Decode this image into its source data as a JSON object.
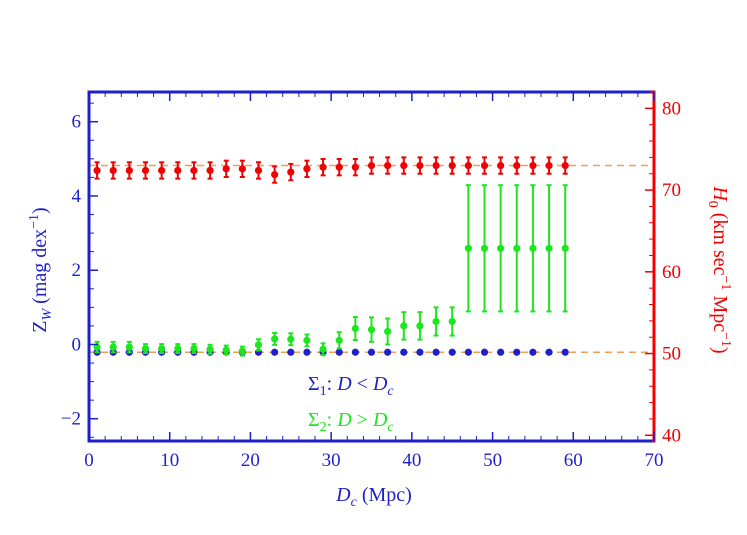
{
  "colors": {
    "zw": "#1f1fcc",
    "h0": "#f00000",
    "sigma2": "#1ee61e",
    "ref_line": "#f0a050",
    "frame": "#1f1fcc"
  },
  "chart_data": {
    "type": "scatter",
    "xlabel": "D",
    "xlabel_sub": "c",
    "xlabel_unit": " (Mpc)",
    "ylabel_left": "Z",
    "ylabel_left_sub": "W",
    "ylabel_left_unit": " (mag dex",
    "ylabel_left_sup": "−1",
    "ylabel_left_close": ")",
    "ylabel_right": "H",
    "ylabel_right_sub": "0",
    "ylabel_right_unit": " (km sec",
    "ylabel_right_sup1": "−1",
    "ylabel_right_mid": " Mpc",
    "ylabel_right_sup2": "−1",
    "ylabel_right_close": ")",
    "xlim": [
      0,
      70
    ],
    "ylim_left": [
      -2.6,
      6.8
    ],
    "ylim_right": [
      39.3,
      82
    ],
    "x_ticks": [
      0,
      10,
      20,
      30,
      40,
      50,
      60,
      70
    ],
    "x_tick_labels": [
      "0",
      "10",
      "20",
      "30",
      "40",
      "50",
      "60",
      "70"
    ],
    "y_left_ticks": [
      -2,
      0,
      2,
      4,
      6
    ],
    "y_left_tick_labels": [
      "−2",
      "0",
      "2",
      "4",
      "6"
    ],
    "y_right_ticks": [
      40,
      50,
      60,
      70,
      80
    ],
    "y_right_tick_labels": [
      "40",
      "50",
      "60",
      "70",
      "80"
    ],
    "annotation_1": {
      "sigma": "Σ",
      "sub": "1",
      "text_a": ": ",
      "D": "D",
      "rel": " < ",
      "D2": "D",
      "sub2": "c"
    },
    "annotation_2": {
      "sigma": "Σ",
      "sub": "2",
      "text_a": ": ",
      "D": "D",
      "rel": " > ",
      "D2": "D",
      "sub2": "c"
    },
    "reference_lines": [
      {
        "axis": "right",
        "y": 73.0
      },
      {
        "axis": "left",
        "y": -0.21
      }
    ],
    "series": [
      {
        "key": "sigma1",
        "axis": "left",
        "color": "#1f1fcc",
        "x": [
          1,
          3,
          5,
          7,
          9,
          11,
          13,
          15,
          17,
          19,
          21,
          23,
          25,
          27,
          29,
          31,
          33,
          35,
          37,
          39,
          41,
          43,
          45,
          47,
          49,
          51,
          53,
          55,
          57,
          59
        ],
        "y": [
          -0.21,
          -0.21,
          -0.21,
          -0.21,
          -0.21,
          -0.21,
          -0.21,
          -0.21,
          -0.21,
          -0.21,
          -0.21,
          -0.21,
          -0.21,
          -0.21,
          -0.21,
          -0.21,
          -0.21,
          -0.21,
          -0.21,
          -0.21,
          -0.21,
          -0.21,
          -0.21,
          -0.21,
          -0.21,
          -0.21,
          -0.21,
          -0.21,
          -0.21,
          -0.21
        ],
        "err": [
          0.04,
          0.04,
          0.04,
          0.04,
          0.04,
          0.04,
          0.04,
          0.04,
          0.04,
          0.04,
          0.04,
          0.04,
          0.04,
          0.04,
          0.04,
          0.04,
          0.04,
          0.04,
          0.04,
          0.04,
          0.04,
          0.04,
          0.04,
          0.04,
          0.04,
          0.04,
          0.04,
          0.04,
          0.04,
          0.04
        ]
      },
      {
        "key": "sigma2",
        "axis": "left",
        "color": "#1ee61e",
        "x": [
          1,
          3,
          5,
          7,
          9,
          11,
          13,
          15,
          17,
          19,
          21,
          23,
          25,
          27,
          29,
          31,
          33,
          35,
          37,
          39,
          41,
          43,
          45,
          47,
          49,
          51,
          53,
          55,
          57,
          59
        ],
        "y": [
          -0.07,
          -0.07,
          -0.07,
          -0.11,
          -0.11,
          -0.11,
          -0.11,
          -0.13,
          -0.15,
          -0.18,
          -0.01,
          0.15,
          0.14,
          0.11,
          -0.13,
          0.11,
          0.43,
          0.4,
          0.35,
          0.5,
          0.5,
          0.62,
          0.62,
          2.59,
          2.59,
          2.59,
          2.59,
          2.59,
          2.59,
          2.59
        ],
        "err": [
          0.14,
          0.14,
          0.14,
          0.12,
          0.12,
          0.12,
          0.12,
          0.12,
          0.12,
          0.12,
          0.15,
          0.16,
          0.16,
          0.16,
          0.16,
          0.22,
          0.31,
          0.33,
          0.35,
          0.37,
          0.37,
          0.38,
          0.38,
          1.7,
          1.7,
          1.7,
          1.7,
          1.7,
          1.7,
          1.7
        ]
      },
      {
        "key": "h0",
        "axis": "right",
        "color": "#f00000",
        "x": [
          1,
          3,
          5,
          7,
          9,
          11,
          13,
          15,
          17,
          19,
          21,
          23,
          25,
          27,
          29,
          31,
          33,
          35,
          37,
          39,
          41,
          43,
          45,
          47,
          49,
          51,
          53,
          55,
          57,
          59
        ],
        "y": [
          72.4,
          72.4,
          72.4,
          72.4,
          72.4,
          72.4,
          72.4,
          72.4,
          72.6,
          72.6,
          72.4,
          71.9,
          72.2,
          72.6,
          72.8,
          72.8,
          72.8,
          73.0,
          73.0,
          73.0,
          73.0,
          73.0,
          73.0,
          73.0,
          73.0,
          73.0,
          73.0,
          73.0,
          73.0,
          73.0
        ],
        "err": [
          1.0,
          1.0,
          1.0,
          1.0,
          1.0,
          1.0,
          1.0,
          1.0,
          1.0,
          1.0,
          1.0,
          1.0,
          1.0,
          1.0,
          1.0,
          1.0,
          1.0,
          1.0,
          1.0,
          1.0,
          1.0,
          1.0,
          1.0,
          1.0,
          1.0,
          1.0,
          1.0,
          1.0,
          1.0,
          1.0
        ]
      }
    ]
  }
}
